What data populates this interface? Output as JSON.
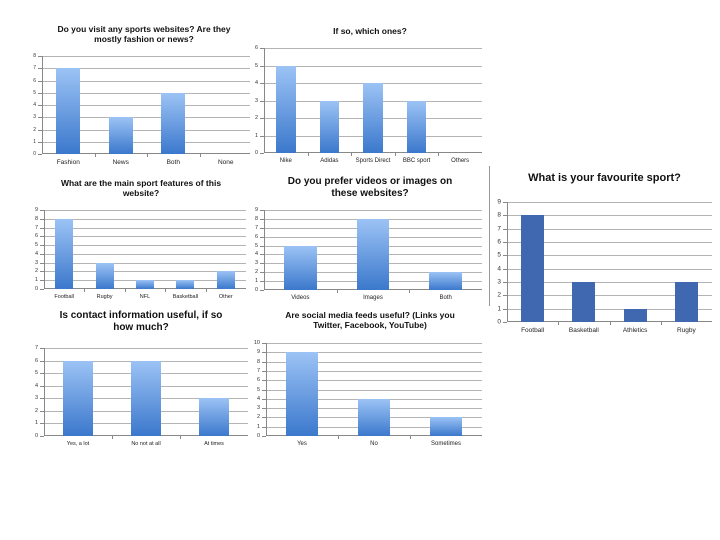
{
  "chart_data": [
    {
      "id": "c1",
      "type": "bar",
      "title": "Do you visit any sports websites? Are they mostly fashion or news?",
      "title_lines": [
        "Do you visit any sports websites? Are they",
        "mostly fashion or news?"
      ],
      "categories": [
        "Fashion",
        "News",
        "Both",
        "None"
      ],
      "values": [
        7,
        3,
        5,
        0
      ],
      "ylim": [
        0,
        8
      ],
      "yticks": [
        0,
        1,
        2,
        3,
        4,
        5,
        6,
        7,
        8
      ],
      "xlabel": "",
      "ylabel": "",
      "grid": true,
      "legend": null,
      "bar_style": "gradient"
    },
    {
      "id": "c2",
      "type": "bar",
      "title": "If so, which ones?",
      "title_lines": [
        "If so, which ones?"
      ],
      "categories": [
        "Nike",
        "Adidas",
        "Sports Direct",
        "BBC sport",
        "Others"
      ],
      "values": [
        5,
        3,
        4,
        3,
        0
      ],
      "ylim": [
        0,
        6
      ],
      "yticks": [
        0,
        1,
        2,
        3,
        4,
        5,
        6
      ],
      "xlabel": "",
      "ylabel": "",
      "grid": true,
      "legend": null,
      "bar_style": "gradient"
    },
    {
      "id": "c3",
      "type": "bar",
      "title": "What are the main sport features of this website?",
      "title_lines": [
        "What are the main sport features of this",
        "website?"
      ],
      "categories": [
        "Football",
        "Rugby",
        "NFL",
        "Basketball",
        "Other"
      ],
      "values": [
        8,
        3,
        1,
        1,
        2
      ],
      "ylim": [
        0,
        9
      ],
      "yticks": [
        0,
        1,
        2,
        3,
        4,
        5,
        6,
        7,
        8,
        9
      ],
      "xlabel": "",
      "ylabel": "",
      "grid": true,
      "legend": null,
      "bar_style": "gradient"
    },
    {
      "id": "c4",
      "type": "bar",
      "title": "Do you prefer videos or images on these websites?",
      "title_lines": [
        "Do you prefer videos or images on",
        "these websites?"
      ],
      "categories": [
        "Videos",
        "Images",
        "Both"
      ],
      "values": [
        5,
        8,
        2
      ],
      "ylim": [
        0,
        9
      ],
      "yticks": [
        0,
        1,
        2,
        3,
        4,
        5,
        6,
        7,
        8,
        9
      ],
      "xlabel": "",
      "ylabel": "",
      "grid": true,
      "legend": null,
      "bar_style": "gradient"
    },
    {
      "id": "c5",
      "type": "bar",
      "title": "What is your favourite sport?",
      "title_lines": [
        "What is your favourite sport?"
      ],
      "categories": [
        "Football",
        "Basketball",
        "Athletics",
        "Rugby"
      ],
      "values": [
        8,
        3,
        1,
        3
      ],
      "ylim": [
        0,
        9
      ],
      "yticks": [
        0,
        1,
        2,
        3,
        4,
        5,
        6,
        7,
        8,
        9
      ],
      "xlabel": "",
      "ylabel": "",
      "grid": true,
      "legend": null,
      "bar_style": "solid"
    },
    {
      "id": "c6",
      "type": "bar",
      "title": "Is contact information useful, if so how much?",
      "title_lines": [
        "Is contact information useful, if so",
        "how much?"
      ],
      "categories": [
        "Yes, a lot",
        "No not at all",
        "At times"
      ],
      "values": [
        6,
        6,
        3
      ],
      "ylim": [
        0,
        7
      ],
      "yticks": [
        0,
        1,
        2,
        3,
        4,
        5,
        6,
        7
      ],
      "xlabel": "",
      "ylabel": "",
      "grid": true,
      "legend": null,
      "bar_style": "gradient"
    },
    {
      "id": "c7",
      "type": "bar",
      "title": "Are social media feeds useful? (Links you Twitter, Facebook, YouTube)",
      "title_lines": [
        "Are social media feeds useful? (Links you",
        "Twitter, Facebook, YouTube)"
      ],
      "categories": [
        "Yes",
        "No",
        "Sometimes"
      ],
      "values": [
        9,
        4,
        2
      ],
      "ylim": [
        0,
        10
      ],
      "yticks": [
        0,
        1,
        2,
        3,
        4,
        5,
        6,
        7,
        8,
        9,
        10
      ],
      "xlabel": "",
      "ylabel": "",
      "grid": true,
      "legend": null,
      "bar_style": "gradient"
    }
  ],
  "colors": {
    "bar_gradient_top": "#9cc3f5",
    "bar_gradient_bottom": "#3b78cc",
    "bar_solid": "#3f68b0",
    "grid": "#b4b4b4"
  }
}
